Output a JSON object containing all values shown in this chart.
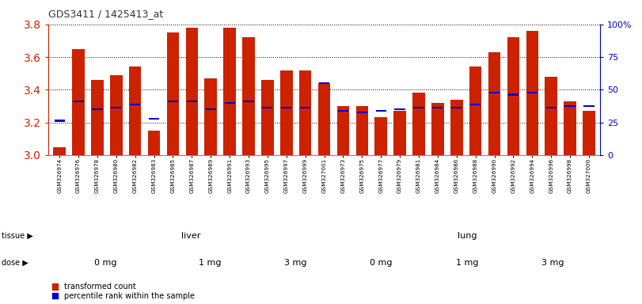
{
  "title": "GDS3411 / 1425413_at",
  "samples": [
    "GSM326974",
    "GSM326976",
    "GSM326978",
    "GSM326980",
    "GSM326982",
    "GSM326983",
    "GSM326985",
    "GSM326987",
    "GSM326989",
    "GSM326991",
    "GSM326993",
    "GSM326995",
    "GSM326997",
    "GSM326999",
    "GSM327001",
    "GSM326973",
    "GSM326975",
    "GSM326977",
    "GSM326979",
    "GSM326981",
    "GSM326984",
    "GSM326986",
    "GSM326988",
    "GSM326990",
    "GSM326992",
    "GSM326994",
    "GSM326996",
    "GSM326998",
    "GSM327000"
  ],
  "bar_values": [
    3.05,
    3.65,
    3.46,
    3.49,
    3.54,
    3.15,
    3.75,
    3.78,
    3.47,
    3.78,
    3.72,
    3.46,
    3.52,
    3.52,
    3.44,
    3.3,
    3.3,
    3.23,
    3.27,
    3.38,
    3.32,
    3.34,
    3.54,
    3.63,
    3.72,
    3.76,
    3.48,
    3.33,
    3.27
  ],
  "percentile_values": [
    3.21,
    3.33,
    3.28,
    3.29,
    3.31,
    3.22,
    3.33,
    3.33,
    3.28,
    3.32,
    3.33,
    3.29,
    3.29,
    3.29,
    3.44,
    3.27,
    3.26,
    3.27,
    3.28,
    3.29,
    3.29,
    3.29,
    3.31,
    3.38,
    3.37,
    3.38,
    3.29,
    3.3,
    3.3
  ],
  "tissue_groups": [
    {
      "label": "liver",
      "start": 0,
      "end": 15,
      "color": "#aaffaa"
    },
    {
      "label": "lung",
      "start": 15,
      "end": 29,
      "color": "#44dd44"
    }
  ],
  "dose_groups": [
    {
      "label": "0 mg",
      "start": 0,
      "end": 6,
      "color": "#ffaaff"
    },
    {
      "label": "1 mg",
      "start": 6,
      "end": 11,
      "color": "#ee66ee"
    },
    {
      "label": "3 mg",
      "start": 11,
      "end": 15,
      "color": "#cc00cc"
    },
    {
      "label": "0 mg",
      "start": 15,
      "end": 20,
      "color": "#ffaaff"
    },
    {
      "label": "1 mg",
      "start": 20,
      "end": 24,
      "color": "#ee66ee"
    },
    {
      "label": "3 mg",
      "start": 24,
      "end": 29,
      "color": "#cc00cc"
    }
  ],
  "ylim": [
    3.0,
    3.8
  ],
  "yticks": [
    3.0,
    3.2,
    3.4,
    3.6,
    3.8
  ],
  "right_yticks": [
    0,
    25,
    50,
    75,
    100
  ],
  "right_ytick_labels": [
    "0",
    "25",
    "50",
    "75",
    "100%"
  ],
  "bar_color": "#cc2200",
  "percentile_color": "#0000cc",
  "bg_color": "#ffffff",
  "title_color": "#333333",
  "left_axis_color": "#cc2200",
  "right_axis_color": "#0000cc"
}
